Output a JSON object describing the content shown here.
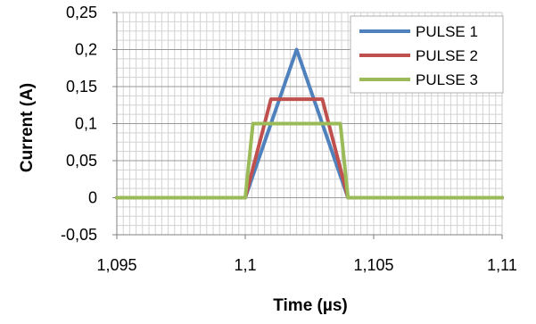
{
  "chart_data": {
    "type": "line",
    "title": "",
    "xlabel": "Time (µs)",
    "ylabel": "Current (A)",
    "xlim": [
      1.095,
      1.11
    ],
    "ylim": [
      -0.05,
      0.25
    ],
    "x_major_ticks": [
      "1,095",
      "1,1",
      "1,105",
      "1,11"
    ],
    "x_major_values": [
      1.095,
      1.1,
      1.105,
      1.11
    ],
    "y_major_ticks": [
      "0,25",
      "0,2",
      "0,15",
      "0,1",
      "0,05",
      "0",
      "-0,05"
    ],
    "y_major_values": [
      0.25,
      0.2,
      0.15,
      0.1,
      0.05,
      0,
      -0.05
    ],
    "grid": true,
    "legend_position": "top-right",
    "series": [
      {
        "name": "PULSE 1",
        "color": "#4F81BD",
        "x": [
          1.095,
          1.1,
          1.102,
          1.104,
          1.11
        ],
        "y": [
          0,
          0,
          0.2,
          0,
          0
        ]
      },
      {
        "name": "PULSE 2",
        "color": "#C0504D",
        "x": [
          1.095,
          1.1,
          1.101,
          1.103,
          1.104,
          1.11
        ],
        "y": [
          0,
          0,
          0.133,
          0.133,
          0,
          0
        ]
      },
      {
        "name": "PULSE 3",
        "color": "#9BBB59",
        "x": [
          1.095,
          1.1,
          1.1003,
          1.1037,
          1.104,
          1.11
        ],
        "y": [
          0,
          0,
          0.1,
          0.1,
          0,
          0
        ]
      }
    ]
  }
}
